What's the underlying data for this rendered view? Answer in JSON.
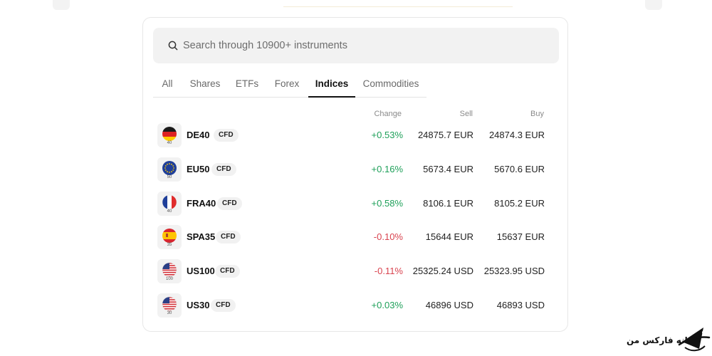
{
  "search": {
    "placeholder": "Search through 10900+ instruments"
  },
  "tabs": [
    {
      "label": "All",
      "active": false
    },
    {
      "label": "Shares",
      "active": false
    },
    {
      "label": "ETFs",
      "active": false
    },
    {
      "label": "Forex",
      "active": false
    },
    {
      "label": "Indices",
      "active": true
    },
    {
      "label": "Commodities",
      "active": false
    }
  ],
  "columns": {
    "change": "Change",
    "sell": "Sell",
    "buy": "Buy"
  },
  "instruments": [
    {
      "symbol": "DE40",
      "badge": "CFD",
      "flag": "germany-flag-icon",
      "flag_label": "40",
      "change": "+0.53%",
      "direction": "up",
      "sell": "24875.7 EUR",
      "buy": "24874.3 EUR"
    },
    {
      "symbol": "EU50",
      "badge": "CFD",
      "flag": "eu-flag-icon",
      "flag_label": "50",
      "change": "+0.16%",
      "direction": "up",
      "sell": "5673.4 EUR",
      "buy": "5670.6 EUR"
    },
    {
      "symbol": "FRA40",
      "badge": "CFD",
      "flag": "france-flag-icon",
      "flag_label": "40",
      "change": "+0.58%",
      "direction": "up",
      "sell": "8106.1 EUR",
      "buy": "8105.2 EUR"
    },
    {
      "symbol": "SPA35",
      "badge": "CFD",
      "flag": "spain-flag-icon",
      "flag_label": "35",
      "change": "-0.10%",
      "direction": "down",
      "sell": "15644 EUR",
      "buy": "15637 EUR"
    },
    {
      "symbol": "US100",
      "badge": "CFD",
      "flag": "usa-flag-icon",
      "flag_label": "100",
      "change": "-0.11%",
      "direction": "down",
      "sell": "25325.24 USD",
      "buy": "25323.95 USD"
    },
    {
      "symbol": "US30",
      "badge": "CFD",
      "flag": "usa-flag-icon",
      "flag_label": "30",
      "change": "+0.03%",
      "direction": "up",
      "sell": "46896 USD",
      "buy": "46893 USD"
    }
  ],
  "colors": {
    "positive": "#1fa05a",
    "negative": "#d9434f",
    "active_tab": "#111111"
  },
  "watermark": {
    "text": "خانه فارکس من",
    "icon": "forex-logo-icon"
  }
}
